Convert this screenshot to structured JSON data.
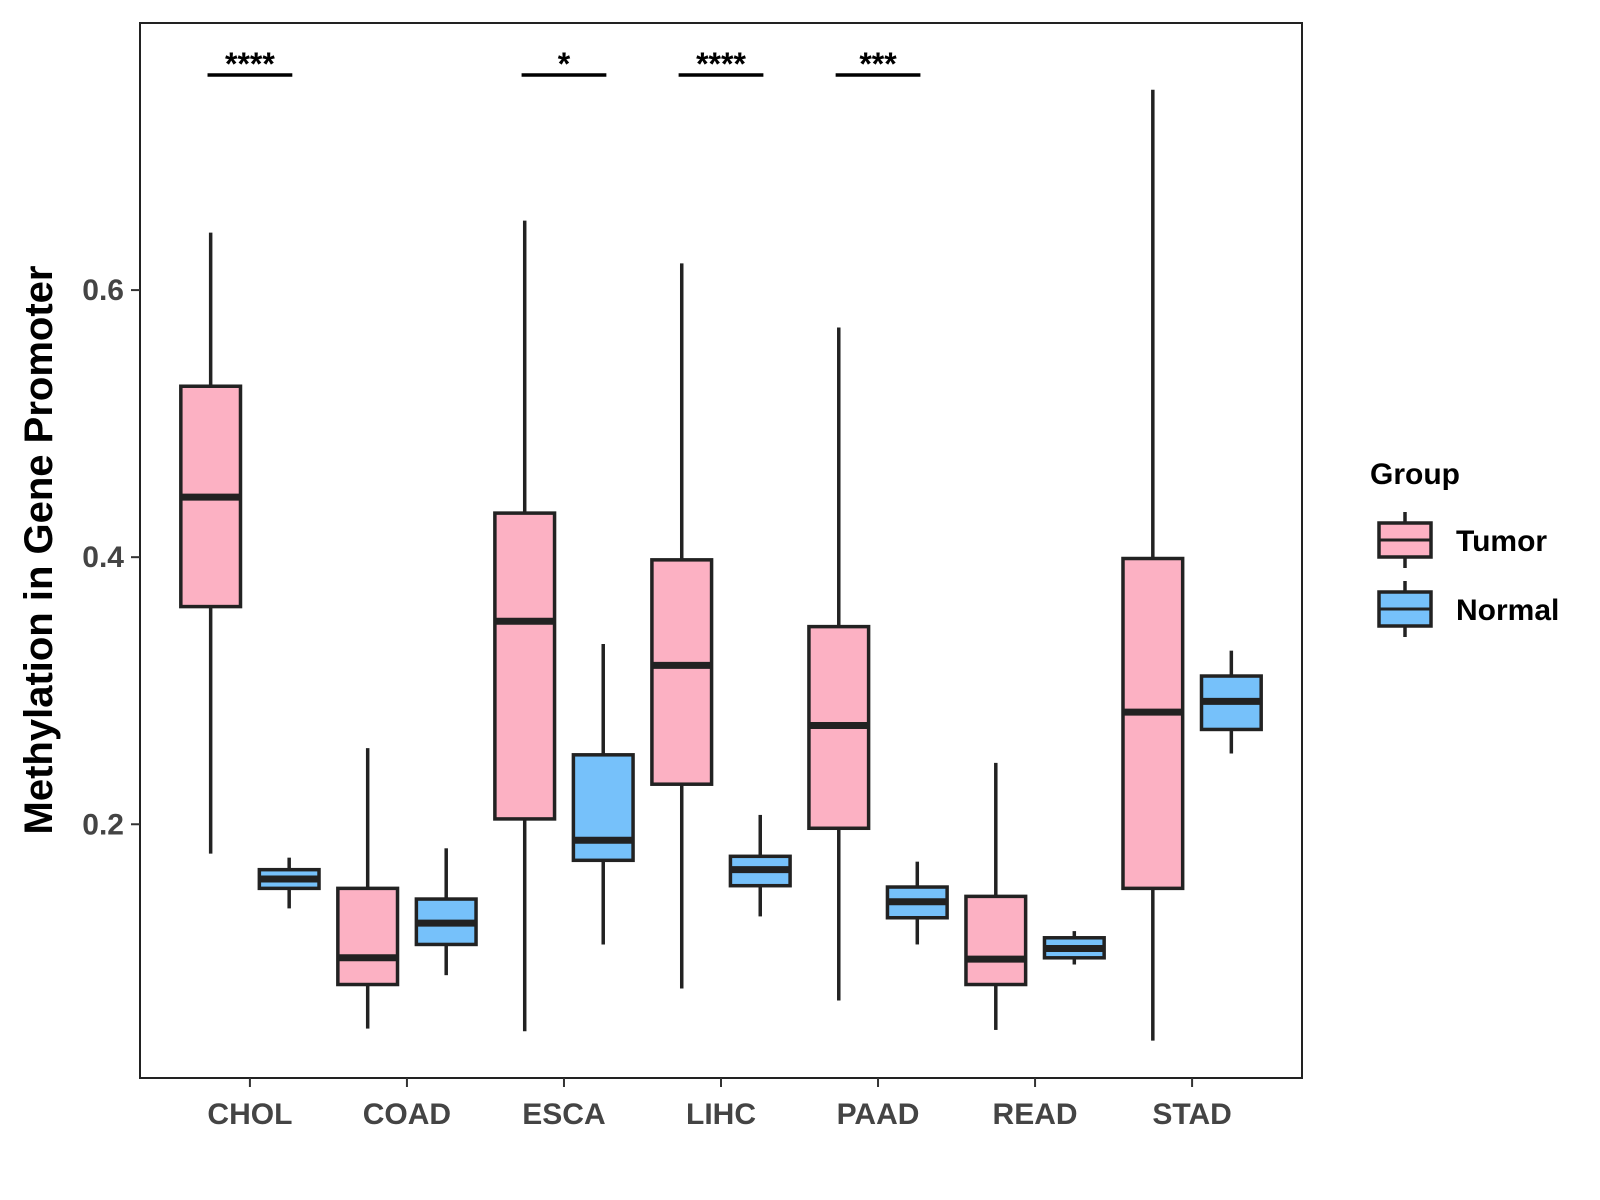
{
  "chart_data": {
    "type": "boxplot",
    "title": "",
    "xlabel": "",
    "ylabel": "Methylation in Gene Promoter",
    "ylim": [
      0.01,
      0.8
    ],
    "yticks": [
      0.2,
      0.4,
      0.6
    ],
    "ytick_labels": [
      "0.2",
      "0.4",
      "0.6"
    ],
    "grid": false,
    "legend_position": "right",
    "legend_title": "Group",
    "categories": [
      "CHOL",
      "COAD",
      "ESCA",
      "LIHC",
      "PAAD",
      "READ",
      "STAD"
    ],
    "series": [
      {
        "name": "Tumor",
        "color": "#FCB1C3",
        "boxes": [
          {
            "min": 0.178,
            "q1": 0.363,
            "median": 0.445,
            "q3": 0.528,
            "max": 0.643
          },
          {
            "min": 0.047,
            "q1": 0.08,
            "median": 0.1,
            "q3": 0.152,
            "max": 0.257
          },
          {
            "min": 0.045,
            "q1": 0.204,
            "median": 0.352,
            "q3": 0.433,
            "max": 0.652
          },
          {
            "min": 0.077,
            "q1": 0.23,
            "median": 0.319,
            "q3": 0.398,
            "max": 0.62
          },
          {
            "min": 0.068,
            "q1": 0.197,
            "median": 0.274,
            "q3": 0.348,
            "max": 0.572
          },
          {
            "min": 0.046,
            "q1": 0.08,
            "median": 0.099,
            "q3": 0.146,
            "max": 0.246
          },
          {
            "min": 0.038,
            "q1": 0.152,
            "median": 0.284,
            "q3": 0.399,
            "max": 0.75
          }
        ]
      },
      {
        "name": "Normal",
        "color": "#76C1FA",
        "boxes": [
          {
            "min": 0.137,
            "q1": 0.152,
            "median": 0.159,
            "q3": 0.166,
            "max": 0.175
          },
          {
            "min": 0.087,
            "q1": 0.11,
            "median": 0.126,
            "q3": 0.144,
            "max": 0.182
          },
          {
            "min": 0.11,
            "q1": 0.173,
            "median": 0.188,
            "q3": 0.252,
            "max": 0.335
          },
          {
            "min": 0.131,
            "q1": 0.154,
            "median": 0.166,
            "q3": 0.176,
            "max": 0.207
          },
          {
            "min": 0.11,
            "q1": 0.13,
            "median": 0.142,
            "q3": 0.153,
            "max": 0.172
          },
          {
            "min": 0.095,
            "q1": 0.1,
            "median": 0.107,
            "q3": 0.115,
            "max": 0.12
          },
          {
            "min": 0.253,
            "q1": 0.271,
            "median": 0.292,
            "q3": 0.311,
            "max": 0.33
          }
        ]
      }
    ],
    "significance": [
      {
        "category": "CHOL",
        "label": "****"
      },
      {
        "category": "ESCA",
        "label": "*"
      },
      {
        "category": "LIHC",
        "label": "****"
      },
      {
        "category": "PAAD",
        "label": "***"
      }
    ]
  }
}
